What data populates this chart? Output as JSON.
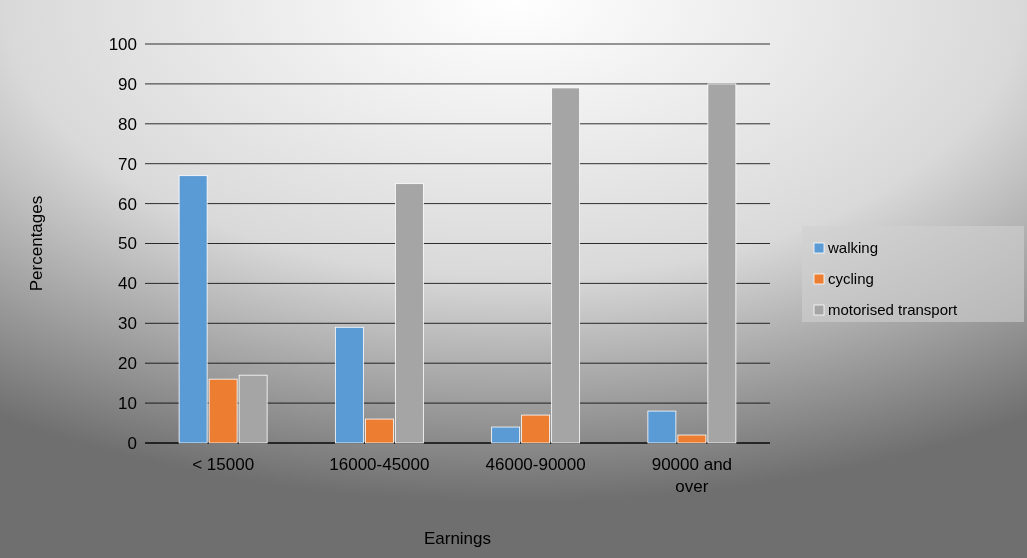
{
  "chart_data": {
    "type": "bar",
    "xlabel": "Earnings",
    "ylabel": "Percentages",
    "categories": [
      "< 15000",
      "16000-45000",
      "46000-90000",
      "90000 and over"
    ],
    "series": [
      {
        "name": "walking",
        "color": "#5b9bd5",
        "values": [
          67,
          29,
          4,
          8
        ]
      },
      {
        "name": "cycling",
        "color": "#ed7d31",
        "values": [
          16,
          6,
          7,
          2
        ]
      },
      {
        "name": "motorised transport",
        "color": "#a5a5a5",
        "values": [
          17,
          65,
          89,
          90
        ]
      }
    ],
    "ylim": [
      0,
      100
    ],
    "yticks": [
      0,
      10,
      20,
      30,
      40,
      50,
      60,
      70,
      80,
      90,
      100
    ],
    "grid": "y",
    "legend": "right"
  }
}
